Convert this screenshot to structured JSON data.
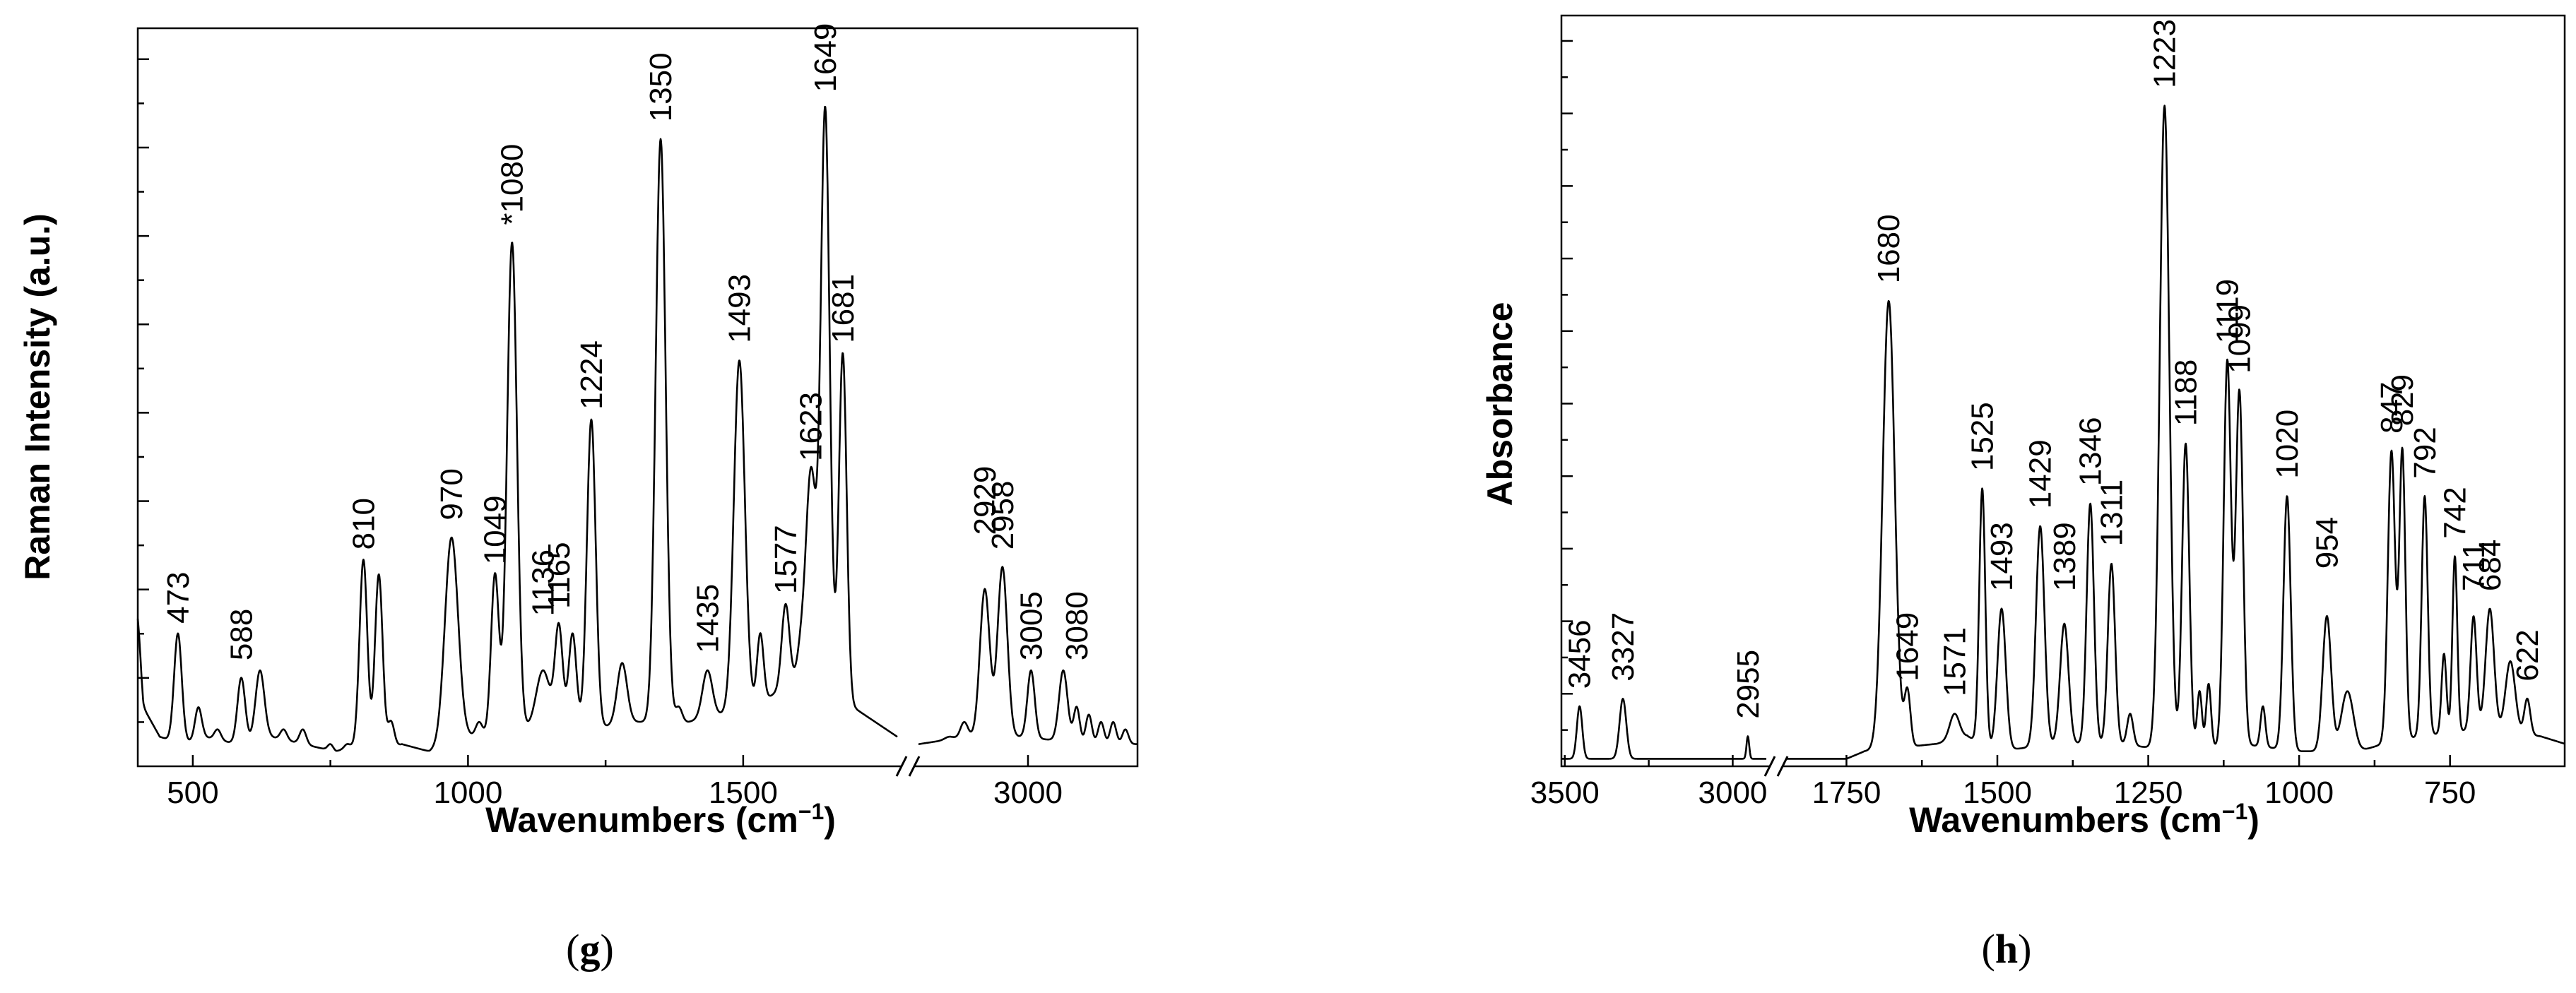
{
  "chart_data": [
    {
      "type": "line",
      "panel_label": "g",
      "title": "",
      "xlabel": "Wavenumbers (cm",
      "xlabel_sup": "−1",
      "xlabel_close": ")",
      "ylabel": "Raman Intensity (a.u.)",
      "broken_x_axis": true,
      "segments": [
        {
          "xlim": [
            400,
            1780
          ],
          "ticks": [
            500,
            1000,
            1500
          ]
        },
        {
          "xlim": [
            2820,
            3180
          ],
          "ticks": [
            3000
          ]
        }
      ],
      "ylim": [
        0,
        100
      ],
      "x_tick_labels": [
        "500",
        "1000",
        "1500",
        "3000"
      ],
      "baseline": [
        [
          400,
          15
        ],
        [
          410,
          8
        ],
        [
          440,
          4
        ],
        [
          480,
          3
        ],
        [
          520,
          4
        ],
        [
          580,
          3
        ],
        [
          640,
          4
        ],
        [
          700,
          3
        ],
        [
          760,
          2
        ],
        [
          800,
          3
        ],
        [
          850,
          2
        ],
        [
          880,
          3
        ],
        [
          930,
          2
        ],
        [
          1000,
          4
        ],
        [
          1100,
          5
        ],
        [
          1150,
          6
        ],
        [
          1220,
          5
        ],
        [
          1300,
          6
        ],
        [
          1400,
          6
        ],
        [
          1520,
          8
        ],
        [
          1600,
          12
        ],
        [
          1640,
          14
        ],
        [
          1700,
          8
        ],
        [
          1780,
          4
        ],
        [
          2820,
          3
        ],
        [
          2900,
          4
        ],
        [
          2990,
          4
        ],
        [
          3100,
          3
        ],
        [
          3180,
          3
        ]
      ],
      "peaks": [
        {
          "x": 400,
          "y": 20,
          "w": 5
        },
        {
          "x": 473,
          "y": 18,
          "w": 7
        },
        {
          "x": 510,
          "y": 8,
          "w": 6
        },
        {
          "x": 545,
          "y": 5,
          "w": 6
        },
        {
          "x": 588,
          "y": 12,
          "w": 7
        },
        {
          "x": 622,
          "y": 13,
          "w": 8
        },
        {
          "x": 665,
          "y": 5,
          "w": 6
        },
        {
          "x": 700,
          "y": 5,
          "w": 6
        },
        {
          "x": 750,
          "y": 3,
          "w": 5
        },
        {
          "x": 780,
          "y": 3,
          "w": 5
        },
        {
          "x": 810,
          "y": 28,
          "w": 7
        },
        {
          "x": 838,
          "y": 26,
          "w": 7
        },
        {
          "x": 860,
          "y": 6,
          "w": 6
        },
        {
          "x": 970,
          "y": 31,
          "w": 12
        },
        {
          "x": 1020,
          "y": 6,
          "w": 6
        },
        {
          "x": 1049,
          "y": 26,
          "w": 7
        },
        {
          "x": 1080,
          "y": 71,
          "w": 9
        },
        {
          "x": 1136,
          "y": 13,
          "w": 12
        },
        {
          "x": 1165,
          "y": 19,
          "w": 7
        },
        {
          "x": 1190,
          "y": 18,
          "w": 7
        },
        {
          "x": 1224,
          "y": 47,
          "w": 8
        },
        {
          "x": 1280,
          "y": 14,
          "w": 9
        },
        {
          "x": 1350,
          "y": 85,
          "w": 9
        },
        {
          "x": 1383,
          "y": 8,
          "w": 6
        },
        {
          "x": 1435,
          "y": 13,
          "w": 9
        },
        {
          "x": 1460,
          "y": 7,
          "w": 7
        },
        {
          "x": 1493,
          "y": 55,
          "w": 10
        },
        {
          "x": 1531,
          "y": 18,
          "w": 6
        },
        {
          "x": 1577,
          "y": 22,
          "w": 7
        },
        {
          "x": 1605,
          "y": 16,
          "w": 7
        },
        {
          "x": 1623,
          "y": 40,
          "w": 9
        },
        {
          "x": 1649,
          "y": 89,
          "w": 8
        },
        {
          "x": 1681,
          "y": 56,
          "w": 7
        },
        {
          "x": 1735,
          "y": 6,
          "w": 7
        },
        {
          "x": 2870,
          "y": 4,
          "w": 7
        },
        {
          "x": 2895,
          "y": 6,
          "w": 6
        },
        {
          "x": 2929,
          "y": 24,
          "w": 8
        },
        {
          "x": 2958,
          "y": 27,
          "w": 8
        },
        {
          "x": 3005,
          "y": 13,
          "w": 6
        },
        {
          "x": 3058,
          "y": 13,
          "w": 7
        },
        {
          "x": 3080,
          "y": 8,
          "w": 5
        },
        {
          "x": 3100,
          "y": 7,
          "w": 5
        },
        {
          "x": 3120,
          "y": 6,
          "w": 5
        },
        {
          "x": 3140,
          "y": 6,
          "w": 5
        },
        {
          "x": 3160,
          "y": 5,
          "w": 5
        }
      ],
      "annotations": [
        {
          "text": "473",
          "x": 473,
          "y": 18
        },
        {
          "text": "588",
          "x": 588,
          "y": 13
        },
        {
          "text": "810",
          "x": 810,
          "y": 28
        },
        {
          "text": "970",
          "x": 970,
          "y": 32
        },
        {
          "text": "1049",
          "x": 1049,
          "y": 26
        },
        {
          "text": "*1080",
          "x": 1080,
          "y": 72
        },
        {
          "text": "1136",
          "x": 1136,
          "y": 19
        },
        {
          "text": "1165",
          "x": 1165,
          "y": 20
        },
        {
          "text": "1224",
          "x": 1224,
          "y": 47
        },
        {
          "text": "1350",
          "x": 1350,
          "y": 86
        },
        {
          "text": "1435",
          "x": 1435,
          "y": 14
        },
        {
          "text": "1493",
          "x": 1493,
          "y": 56
        },
        {
          "text": "1577",
          "x": 1577,
          "y": 22
        },
        {
          "text": "1623",
          "x": 1623,
          "y": 40
        },
        {
          "text": "1649",
          "x": 1649,
          "y": 90
        },
        {
          "text": "1681",
          "x": 1681,
          "y": 56
        },
        {
          "text": "2929",
          "x": 2929,
          "y": 30
        },
        {
          "text": "2958",
          "x": 2958,
          "y": 28
        },
        {
          "text": "3005",
          "x": 3005,
          "y": 13
        },
        {
          "text": "3080",
          "x": 3080,
          "y": 13
        }
      ]
    },
    {
      "type": "line",
      "panel_label": "h",
      "title": "",
      "xlabel": "Wavenumbers (cm",
      "xlabel_sup": "−1",
      "xlabel_close": ")",
      "ylabel": "Absorbance",
      "broken_x_axis": true,
      "reversed_x": true,
      "segments": [
        {
          "xlim": [
            3510,
            2900
          ],
          "ticks": [
            3500,
            3000
          ]
        },
        {
          "xlim": [
            1850,
            560
          ],
          "ticks": [
            1750,
            1500,
            1250,
            1000,
            750
          ]
        }
      ],
      "ylim": [
        0,
        100
      ],
      "x_tick_labels": [
        "3500",
        "3000",
        "1750",
        "1500",
        "1250",
        "1000",
        "750"
      ],
      "baseline": [
        [
          3510,
          1
        ],
        [
          3400,
          1
        ],
        [
          3200,
          1
        ],
        [
          3000,
          1
        ],
        [
          2900,
          1
        ],
        [
          1850,
          1
        ],
        [
          1750,
          1
        ],
        [
          1720,
          2
        ],
        [
          1600,
          3
        ],
        [
          1550,
          4
        ],
        [
          1500,
          2
        ],
        [
          1400,
          3
        ],
        [
          1300,
          3
        ],
        [
          1200,
          2
        ],
        [
          1100,
          3
        ],
        [
          1000,
          2
        ],
        [
          900,
          2
        ],
        [
          860,
          3
        ],
        [
          800,
          4
        ],
        [
          700,
          5
        ],
        [
          600,
          4
        ],
        [
          560,
          3
        ]
      ],
      "peaks": [
        {
          "x": 3456,
          "y": 8,
          "w": 8
        },
        {
          "x": 3327,
          "y": 9,
          "w": 10
        },
        {
          "x": 3110,
          "y": 1,
          "w": 5
        },
        {
          "x": 3030,
          "y": 1,
          "w": 5
        },
        {
          "x": 2955,
          "y": 4,
          "w": 4
        },
        {
          "x": 1780,
          "y": 1,
          "w": 5
        },
        {
          "x": 1680,
          "y": 62,
          "w": 10
        },
        {
          "x": 1649,
          "y": 10,
          "w": 5
        },
        {
          "x": 1620,
          "y": 2,
          "w": 5
        },
        {
          "x": 1571,
          "y": 7,
          "w": 8
        },
        {
          "x": 1525,
          "y": 37,
          "w": 5
        },
        {
          "x": 1493,
          "y": 21,
          "w": 7
        },
        {
          "x": 1429,
          "y": 32,
          "w": 7
        },
        {
          "x": 1389,
          "y": 19,
          "w": 7
        },
        {
          "x": 1346,
          "y": 35,
          "w": 6
        },
        {
          "x": 1311,
          "y": 27,
          "w": 6
        },
        {
          "x": 1280,
          "y": 7,
          "w": 5
        },
        {
          "x": 1223,
          "y": 88,
          "w": 8
        },
        {
          "x": 1188,
          "y": 43,
          "w": 6
        },
        {
          "x": 1165,
          "y": 10,
          "w": 4
        },
        {
          "x": 1150,
          "y": 11,
          "w": 4
        },
        {
          "x": 1119,
          "y": 54,
          "w": 6
        },
        {
          "x": 1099,
          "y": 50,
          "w": 6
        },
        {
          "x": 1060,
          "y": 8,
          "w": 4
        },
        {
          "x": 1020,
          "y": 36,
          "w": 6
        },
        {
          "x": 954,
          "y": 20,
          "w": 7
        },
        {
          "x": 920,
          "y": 10,
          "w": 10
        },
        {
          "x": 847,
          "y": 42,
          "w": 6
        },
        {
          "x": 829,
          "y": 42,
          "w": 5
        },
        {
          "x": 792,
          "y": 36,
          "w": 5
        },
        {
          "x": 760,
          "y": 15,
          "w": 4
        },
        {
          "x": 742,
          "y": 28,
          "w": 4
        },
        {
          "x": 711,
          "y": 20,
          "w": 5
        },
        {
          "x": 684,
          "y": 21,
          "w": 7
        },
        {
          "x": 650,
          "y": 14,
          "w": 8
        },
        {
          "x": 622,
          "y": 9,
          "w": 5
        }
      ],
      "annotations": [
        {
          "text": "3456",
          "x": 3456,
          "y": 9
        },
        {
          "text": "3327",
          "x": 3327,
          "y": 10
        },
        {
          "text": "2955",
          "x": 2955,
          "y": 5
        },
        {
          "text": "1680",
          "x": 1680,
          "y": 63
        },
        {
          "text": "1649",
          "x": 1649,
          "y": 10
        },
        {
          "text": "1571",
          "x": 1571,
          "y": 8
        },
        {
          "text": "1525",
          "x": 1525,
          "y": 38
        },
        {
          "text": "1493",
          "x": 1493,
          "y": 22
        },
        {
          "text": "1429",
          "x": 1429,
          "y": 33
        },
        {
          "text": "1389",
          "x": 1389,
          "y": 22
        },
        {
          "text": "1346",
          "x": 1346,
          "y": 36
        },
        {
          "text": "1311",
          "x": 1311,
          "y": 28
        },
        {
          "text": "1223",
          "x": 1223,
          "y": 89
        },
        {
          "text": "1188",
          "x": 1188,
          "y": 44
        },
        {
          "text": "1119",
          "x": 1119,
          "y": 55
        },
        {
          "text": "1099",
          "x": 1099,
          "y": 51
        },
        {
          "text": "1020",
          "x": 1020,
          "y": 37
        },
        {
          "text": "954",
          "x": 954,
          "y": 25
        },
        {
          "text": "847",
          "x": 847,
          "y": 43
        },
        {
          "text": "829",
          "x": 829,
          "y": 44
        },
        {
          "text": "792",
          "x": 792,
          "y": 37
        },
        {
          "text": "742",
          "x": 742,
          "y": 29
        },
        {
          "text": "711",
          "x": 711,
          "y": 22
        },
        {
          "text": "684",
          "x": 684,
          "y": 22
        },
        {
          "text": "622",
          "x": 622,
          "y": 10
        }
      ]
    }
  ]
}
